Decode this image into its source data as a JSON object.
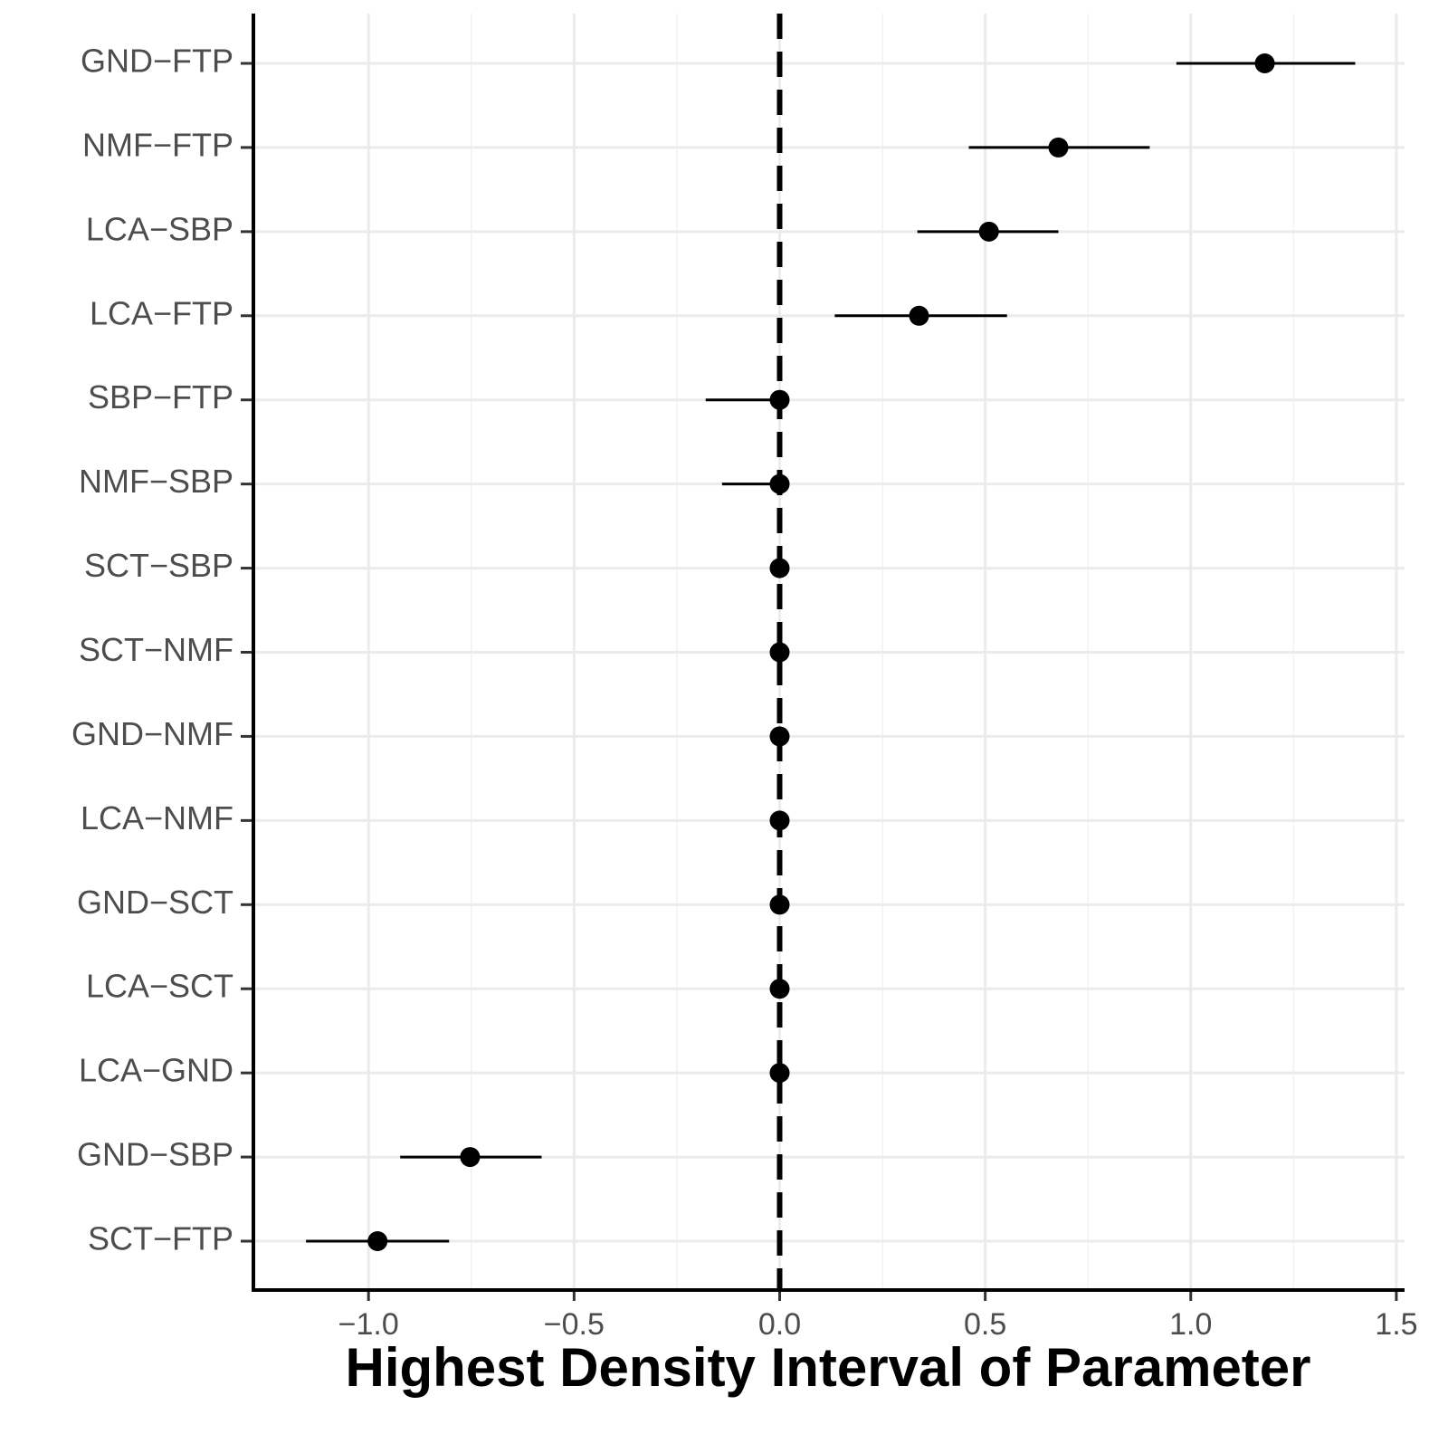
{
  "chart_data": {
    "type": "pointrange",
    "x_label": "Highest Density Interval of Parameter",
    "categories": [
      "GND−FTP",
      "NMF−FTP",
      "LCA−SBP",
      "LCA−FTP",
      "SBP−FTP",
      "NMF−SBP",
      "SCT−SBP",
      "SCT−NMF",
      "GND−NMF",
      "LCA−NMF",
      "GND−SCT",
      "LCA−SCT",
      "LCA−GND",
      "GND−SBP",
      "SCT−FTP"
    ],
    "values": [
      1.18,
      0.678,
      0.509,
      0.339,
      0,
      0,
      0,
      0,
      0,
      0,
      0,
      0,
      0,
      -0.753,
      -0.978
    ],
    "lower": [
      0.965,
      0.46,
      0.335,
      0.134,
      -0.18,
      -0.14,
      0,
      0,
      0,
      0,
      0,
      0,
      0,
      -0.923,
      -1.152
    ],
    "upper": [
      1.4,
      0.9,
      0.678,
      0.553,
      0,
      0,
      0,
      0,
      0,
      0,
      0,
      0,
      0,
      -0.579,
      -0.804
    ],
    "color": "#000000",
    "reference_line": 0,
    "xlim": [
      -1.28,
      1.52
    ],
    "xticks": [
      {
        "value": -1,
        "label": "−1.0"
      },
      {
        "value": -0.5,
        "label": "−0.5"
      },
      {
        "value": 0,
        "label": "0.0"
      },
      {
        "value": 0.5,
        "label": "0.5"
      },
      {
        "value": 1,
        "label": "1.0"
      },
      {
        "value": 1.5,
        "label": "1.5"
      }
    ],
    "grid": true
  }
}
